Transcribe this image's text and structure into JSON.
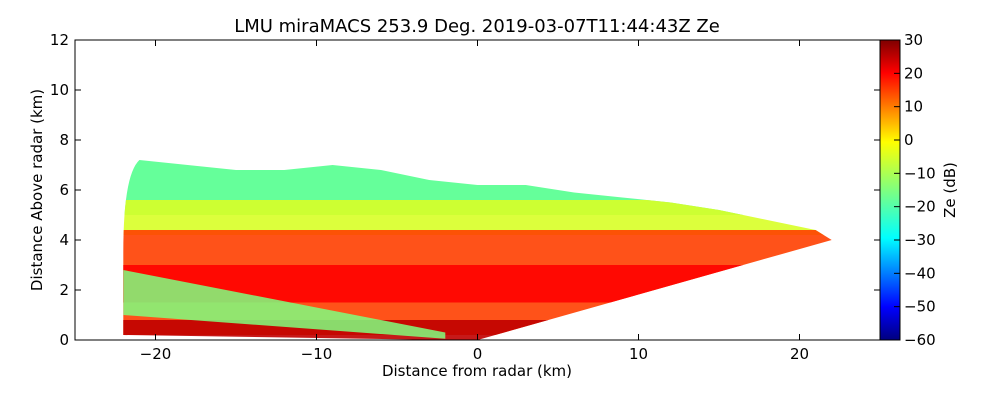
{
  "chart_data": {
    "type": "heatmap",
    "title": "LMU miraMACS 253.9 Deg. 2019-03-07T11:44:43Z  Ze",
    "xlabel": "Distance from radar (km)",
    "ylabel": "Distance Above radar  (km)",
    "xlim": [
      -25,
      25
    ],
    "ylim": [
      0,
      12
    ],
    "xticks": [
      -20,
      -10,
      0,
      10,
      20
    ],
    "yticks": [
      0,
      2,
      4,
      6,
      8,
      10,
      12
    ],
    "colorbar": {
      "label": "Ze (dB)",
      "range": [
        -60,
        30
      ],
      "ticks": [
        30,
        20,
        10,
        0,
        -10,
        -20,
        -30,
        -40,
        -50,
        -60
      ],
      "colormap": "jet"
    },
    "echo": {
      "left_edge_x_km": -22,
      "right_edge_x_km": 22,
      "cloud_top_km": {
        "x": [
          -21,
          -18,
          -15,
          -12,
          -9,
          -6,
          -3,
          0,
          3,
          6,
          9,
          12,
          15,
          18,
          21
        ],
        "y": [
          7.2,
          7.0,
          6.8,
          6.8,
          7.0,
          6.8,
          6.4,
          6.2,
          6.2,
          5.9,
          5.7,
          5.5,
          5.2,
          4.8,
          4.4
        ]
      },
      "layers": [
        {
          "bottom_km": 5.0,
          "top_km": 7.4,
          "ze_db": -18
        },
        {
          "bottom_km": 4.2,
          "top_km": 5.6,
          "ze_db": -5
        },
        {
          "bottom_km": 0.2,
          "top_km": 4.4,
          "ze_db": 15
        },
        {
          "bottom_km": 1.5,
          "top_km": 3.0,
          "ze_db": 20
        },
        {
          "bottom_km": 0.0,
          "top_km": 0.8,
          "ze_db": 25
        }
      ],
      "weak_band_left_ze_db": -15
    }
  }
}
